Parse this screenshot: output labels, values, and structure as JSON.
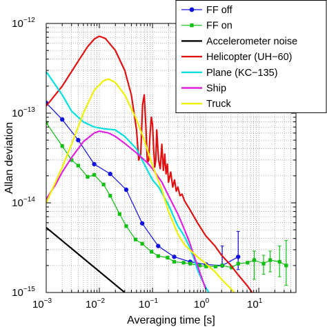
{
  "chart_data": {
    "type": "line",
    "xlabel": "Averaging time [s]",
    "ylabel": "Allan deviation",
    "xscale": "log",
    "yscale": "log",
    "xlim": [
      0.001,
      50
    ],
    "ylim": [
      1e-15,
      1e-12
    ],
    "grid": true,
    "legend_position": "top-right",
    "x_ticks": [
      {
        "base": "10",
        "exp": "−3",
        "value": 0.001
      },
      {
        "base": "10",
        "exp": "−2",
        "value": 0.01
      },
      {
        "base": "10",
        "exp": "−1",
        "value": 0.1
      },
      {
        "base": "10",
        "exp": "0",
        "value": 1
      },
      {
        "base": "10",
        "exp": "1",
        "value": 10
      }
    ],
    "y_ticks": [
      {
        "base": "10",
        "exp": "−15",
        "value": 1e-15
      },
      {
        "base": "10",
        "exp": "−14",
        "value": 1e-14
      },
      {
        "base": "10",
        "exp": "−13",
        "value": 1e-13
      },
      {
        "base": "10",
        "exp": "−12",
        "value": 1e-12
      }
    ],
    "series": [
      {
        "name": "FF off",
        "color": "#1010e0",
        "marker": "circle",
        "x": [
          0.001,
          0.002,
          0.004,
          0.008,
          0.016,
          0.032,
          0.064,
          0.128,
          0.256,
          0.512,
          1.024,
          2.048,
          4.096
        ],
        "y": [
          1.3e-13,
          8.5e-14,
          5e-14,
          2.7e-14,
          2.1e-14,
          1.4e-14,
          5.9e-15,
          3.3e-15,
          2.5e-15,
          2.2e-15,
          2.05e-15,
          2e-15,
          2.5e-15
        ],
        "err_low": [
          null,
          null,
          null,
          null,
          null,
          null,
          null,
          null,
          null,
          null,
          null,
          null,
          1.8e-15
        ],
        "err_high": [
          null,
          null,
          null,
          null,
          null,
          null,
          null,
          null,
          null,
          null,
          null,
          3.3e-15,
          4.8e-15
        ]
      },
      {
        "name": "FF on",
        "color": "#10c010",
        "marker": "square",
        "x": [
          0.001,
          0.002,
          0.003,
          0.004,
          0.006,
          0.008,
          0.012,
          0.016,
          0.024,
          0.032,
          0.048,
          0.064,
          0.096,
          0.128,
          0.192,
          0.256,
          0.384,
          0.512,
          0.768,
          1.024,
          1.536,
          2.048,
          3.072,
          4.096,
          6.144,
          8.192,
          12.288,
          16.384,
          24.576,
          32.768
        ],
        "y": [
          7.8e-14,
          4.3e-14,
          3e-14,
          2.6e-14,
          1.95e-14,
          2.05e-14,
          1.6e-14,
          1.2e-14,
          7.5e-15,
          5.5e-15,
          3.9e-15,
          3.5e-15,
          2.85e-15,
          2.55e-15,
          2.45e-15,
          2.2e-15,
          2.15e-15,
          2.1e-15,
          2e-15,
          1.95e-15,
          1.95e-15,
          2e-15,
          1.9e-15,
          2.1e-15,
          2.15e-15,
          2.3e-15,
          2.1e-15,
          2.3e-15,
          2.2e-15,
          2e-15
        ],
        "err_low": [
          null,
          null,
          null,
          null,
          null,
          null,
          null,
          null,
          null,
          null,
          null,
          null,
          null,
          null,
          null,
          null,
          null,
          null,
          null,
          null,
          null,
          null,
          null,
          null,
          null,
          1.4e-15,
          1.6e-15,
          1.7e-15,
          1.5e-15,
          1.2e-15
        ],
        "err_high": [
          null,
          null,
          null,
          null,
          null,
          null,
          null,
          null,
          null,
          null,
          null,
          null,
          null,
          null,
          null,
          null,
          null,
          null,
          null,
          null,
          null,
          null,
          null,
          null,
          null,
          2.9e-15,
          2.6e-15,
          2.9e-15,
          3.3e-15,
          3.8e-15
        ]
      },
      {
        "name": "Accelerometer noise",
        "color": "#000000",
        "x": [
          0.001,
          0.03
        ],
        "y": [
          5.3e-15,
          1e-15
        ]
      },
      {
        "name": "Helicopter (UH−60)",
        "color": "#e01010",
        "x": [
          0.001,
          0.002,
          0.004,
          0.006,
          0.008,
          0.01,
          0.013,
          0.02,
          0.03,
          0.04,
          0.05,
          0.055,
          0.06,
          0.065,
          0.07,
          0.075,
          0.08,
          0.085,
          0.09,
          0.095,
          0.1,
          0.105,
          0.11,
          0.115,
          0.12,
          0.13,
          0.14,
          0.15,
          0.16,
          0.17,
          0.18,
          0.19,
          0.2,
          0.22,
          0.24,
          0.26,
          0.28,
          0.3,
          0.33,
          0.36,
          0.4,
          0.5,
          0.7,
          1.0,
          1.5,
          2.0,
          3.0,
          4.0,
          6.0,
          8.0
        ],
        "y": [
          1.2e-13,
          2e-13,
          3.8e-13,
          5.5e-13,
          6.7e-13,
          7.2e-13,
          6.8e-13,
          5e-13,
          3e-13,
          1.6e-13,
          6.5e-14,
          3e-14,
          3.5e-14,
          1.25e-13,
          1.6e-13,
          7e-14,
          2.8e-14,
          3e-14,
          6e-14,
          9e-14,
          7.5e-14,
          4e-14,
          2.5e-14,
          3e-14,
          6.5e-14,
          3e-14,
          2.4e-14,
          4.5e-14,
          2.3e-14,
          3.5e-14,
          2.1e-14,
          2.7e-14,
          1.7e-14,
          2.2e-14,
          1.5e-14,
          1.8e-14,
          1.35e-14,
          1.5e-14,
          1.2e-14,
          1.25e-14,
          1.05e-14,
          8.5e-15,
          6e-15,
          4.3e-15,
          3.3e-15,
          2.6e-15,
          2e-15,
          1.6e-15,
          1.2e-15,
          9.5e-16
        ]
      },
      {
        "name": "Plane (KC−135)",
        "color": "#00e0e0",
        "x": [
          0.001,
          0.002,
          0.003,
          0.005,
          0.008,
          0.012,
          0.02,
          0.03,
          0.05,
          0.07,
          0.1,
          0.13,
          0.16,
          0.2,
          0.25,
          0.3,
          0.35,
          0.4,
          0.5,
          0.6,
          0.7,
          0.8,
          1.0,
          1.2,
          1.5
        ],
        "y": [
          2.9e-13,
          1.6e-13,
          1.05e-13,
          8e-14,
          7e-14,
          6.7e-14,
          6.5e-14,
          5.5e-14,
          4e-14,
          2.7e-14,
          1.8e-14,
          1.5e-14,
          1.2e-14,
          9.5e-15,
          7e-15,
          5.5e-15,
          4.8e-15,
          4.2e-15,
          3.2e-15,
          2.4e-15,
          1.8e-15,
          1.5e-15,
          1.15e-15,
          9.5e-16,
          8e-16
        ]
      },
      {
        "name": "Ship",
        "color": "#e020e0",
        "x": [
          0.001,
          0.0015,
          0.002,
          0.003,
          0.005,
          0.008,
          0.01,
          0.015,
          0.02,
          0.03,
          0.05,
          0.08,
          0.1,
          0.15,
          0.2,
          0.3,
          0.4,
          0.5,
          0.6,
          0.8,
          1.0
        ],
        "y": [
          1.1e-14,
          1.6e-14,
          2.2e-14,
          3.2e-14,
          4.8e-14,
          6e-14,
          6.3e-14,
          6e-14,
          5.5e-14,
          4.6e-14,
          3.6e-14,
          2.8e-14,
          2.4e-14,
          1.7e-14,
          1.2e-14,
          7.5e-15,
          5e-15,
          3.6e-15,
          2.6e-15,
          1.6e-15,
          1.1e-15
        ]
      },
      {
        "name": "Truck",
        "color": "#f0f000",
        "x": [
          0.001,
          0.002,
          0.003,
          0.005,
          0.008,
          0.012,
          0.015,
          0.02,
          0.03,
          0.05,
          0.07,
          0.1,
          0.15,
          0.2,
          0.3,
          0.4,
          0.5,
          0.7,
          1.0,
          1.5,
          2.0,
          3.0,
          4.0,
          5.0
        ],
        "y": [
          1e-14,
          2.5e-14,
          4.5e-14,
          1e-13,
          1.8e-13,
          2.3e-13,
          2.4e-13,
          2.2e-13,
          1.6e-13,
          8.5e-14,
          5e-14,
          2.6e-14,
          1.4e-14,
          8e-15,
          4.5e-15,
          3.4e-15,
          3e-15,
          2.5e-15,
          2.1e-15,
          1.7e-15,
          1.4e-15,
          1.1e-15,
          9e-16,
          8e-16
        ]
      }
    ]
  }
}
